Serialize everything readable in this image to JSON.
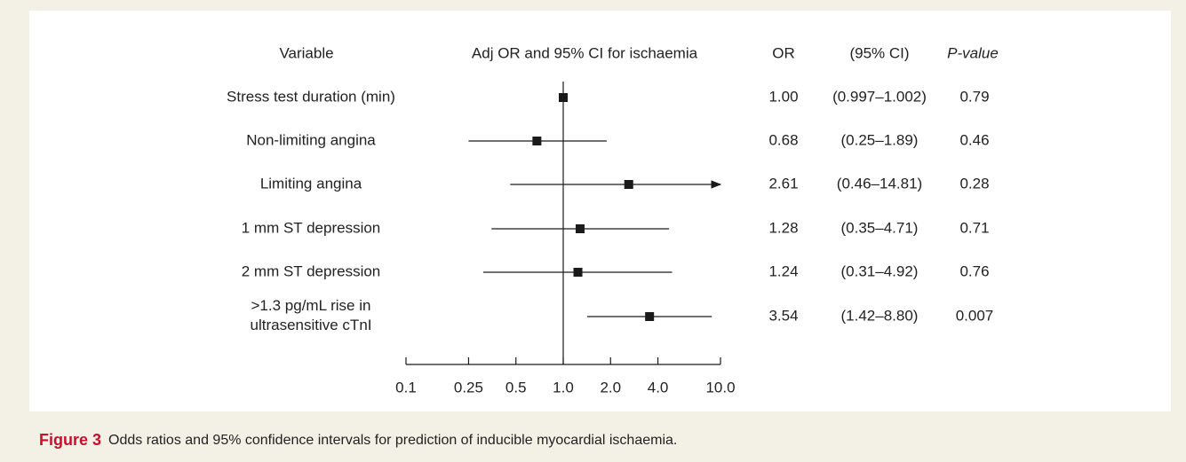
{
  "chart_data": {
    "type": "forest",
    "headers": {
      "variable": "Variable",
      "plot": "Adj OR and 95% CI for ischaemia",
      "or": "OR",
      "ci": "(95% CI)",
      "p": "P-value"
    },
    "categories": [
      "Stress test duration (min)",
      "Non-limiting angina",
      "Limiting angina",
      "1 mm ST depression",
      "2 mm ST depression",
      ">1.3 pg/mL rise in\nultrasensitive cTnI"
    ],
    "values": [
      1.0,
      0.68,
      2.61,
      1.28,
      1.24,
      3.54
    ],
    "value_labels": [
      "1.00",
      "0.68",
      "2.61",
      "1.28",
      "1.24",
      "3.54"
    ],
    "lower": [
      0.997,
      0.25,
      0.46,
      0.35,
      0.31,
      1.42
    ],
    "upper": [
      1.002,
      1.89,
      14.81,
      4.71,
      4.92,
      8.8
    ],
    "ci_labels": [
      "(0.997–1.002)",
      "(0.25–1.89)",
      "(0.46–14.81)",
      "(0.35–4.71)",
      "(0.31–4.92)",
      "(1.42–8.80)"
    ],
    "p_values": [
      0.79,
      0.46,
      0.28,
      0.71,
      0.76,
      0.007
    ],
    "reference": 1,
    "log_x": true,
    "color": "#1a1a1a",
    "xlim": [
      0.1,
      10
    ],
    "xticks": [
      0.1,
      0.25,
      0.5,
      {
        "value": 1,
        "label": "1.0"
      },
      {
        "value": 2,
        "label": "2.0"
      },
      {
        "value": 4,
        "label": "4.0"
      },
      {
        "value": 10,
        "label": "10.0"
      }
    ],
    "caption_label": "Figure 3",
    "caption": "Odds ratios and 95% confidence intervals for prediction of inducible myocardial ischaemia."
  }
}
